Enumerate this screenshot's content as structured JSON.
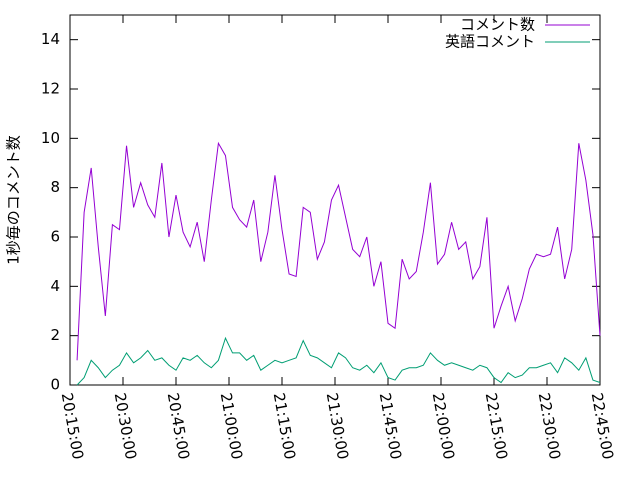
{
  "chart_data": {
    "type": "line",
    "y_label": "1秒毎のコメント数",
    "x": [
      "20:17:00",
      "20:19:00",
      "20:21:00",
      "20:23:00",
      "20:25:00",
      "20:27:00",
      "20:29:00",
      "20:31:00",
      "20:33:00",
      "20:35:00",
      "20:37:00",
      "20:39:00",
      "20:41:00",
      "20:43:00",
      "20:45:00",
      "20:47:00",
      "20:49:00",
      "20:51:00",
      "20:53:00",
      "20:55:00",
      "20:57:00",
      "20:59:00",
      "21:01:00",
      "21:03:00",
      "21:05:00",
      "21:07:00",
      "21:09:00",
      "21:11:00",
      "21:13:00",
      "21:15:00",
      "21:17:00",
      "21:19:00",
      "21:21:00",
      "21:23:00",
      "21:25:00",
      "21:27:00",
      "21:29:00",
      "21:31:00",
      "21:33:00",
      "21:35:00",
      "21:37:00",
      "21:39:00",
      "21:41:00",
      "21:43:00",
      "21:45:00",
      "21:47:00",
      "21:49:00",
      "21:51:00",
      "21:53:00",
      "21:55:00",
      "21:57:00",
      "21:59:00",
      "22:01:00",
      "22:03:00",
      "22:05:00",
      "22:07:00",
      "22:09:00",
      "22:11:00",
      "22:13:00",
      "22:15:00",
      "22:17:00",
      "22:19:00",
      "22:21:00",
      "22:23:00",
      "22:25:00",
      "22:27:00",
      "22:29:00",
      "22:31:00",
      "22:33:00",
      "22:35:00",
      "22:37:00",
      "22:39:00",
      "22:41:00",
      "22:43:00",
      "22:45:00"
    ],
    "series": [
      {
        "name": "コメント数",
        "color": "#9400d3",
        "values": [
          1.0,
          7,
          8.8,
          5.6,
          2.8,
          6.5,
          6.3,
          9.7,
          7.2,
          8.2,
          7.3,
          6.8,
          9.0,
          6.0,
          7.7,
          6.2,
          5.6,
          6.6,
          5.0,
          7.5,
          9.8,
          9.3,
          7.2,
          6.7,
          6.4,
          7.5,
          5.0,
          6.2,
          8.5,
          6.3,
          4.5,
          4.4,
          7.2,
          7.0,
          5.1,
          5.8,
          7.5,
          8.1,
          6.8,
          5.5,
          5.2,
          6.0,
          4.0,
          5.0,
          2.5,
          2.3,
          5.1,
          4.3,
          4.6,
          6.2,
          8.2,
          4.9,
          5.3,
          6.6,
          5.5,
          5.8,
          4.3,
          4.8,
          6.8,
          2.3,
          3.2,
          4.0,
          2.6,
          3.5,
          4.7,
          5.3,
          5.2,
          5.3,
          6.4,
          4.3,
          5.5,
          9.8,
          8.3,
          6.1,
          2.0
        ]
      },
      {
        "name": "英語コメント",
        "color": "#009e73",
        "values": [
          0.0,
          0.3,
          1.0,
          0.7,
          0.3,
          0.6,
          0.8,
          1.3,
          0.9,
          1.1,
          1.4,
          1.0,
          1.1,
          0.8,
          0.6,
          1.1,
          1.0,
          1.2,
          0.9,
          0.7,
          1.0,
          1.9,
          1.3,
          1.3,
          1.0,
          1.2,
          0.6,
          0.8,
          1.0,
          0.9,
          1.0,
          1.1,
          1.8,
          1.2,
          1.1,
          0.9,
          0.7,
          1.3,
          1.1,
          0.7,
          0.6,
          0.8,
          0.5,
          0.9,
          0.3,
          0.2,
          0.6,
          0.7,
          0.7,
          0.8,
          1.3,
          1.0,
          0.8,
          0.9,
          0.8,
          0.7,
          0.6,
          0.8,
          0.7,
          0.3,
          0.1,
          0.5,
          0.3,
          0.4,
          0.7,
          0.7,
          0.8,
          0.9,
          0.5,
          1.1,
          0.9,
          0.6,
          1.1,
          0.2,
          0.1
        ]
      }
    ],
    "xlim": [
      "20:15:00",
      "22:45:00"
    ],
    "xticks": [
      "20:15:00",
      "20:30:00",
      "20:45:00",
      "21:00:00",
      "21:15:00",
      "21:30:00",
      "21:45:00",
      "22:00:00",
      "22:15:00",
      "22:30:00",
      "22:45:00"
    ],
    "ylim": [
      0,
      15
    ],
    "yticks": [
      0,
      2,
      4,
      6,
      8,
      10,
      12,
      14
    ],
    "grid": false,
    "legend": "top-right"
  }
}
